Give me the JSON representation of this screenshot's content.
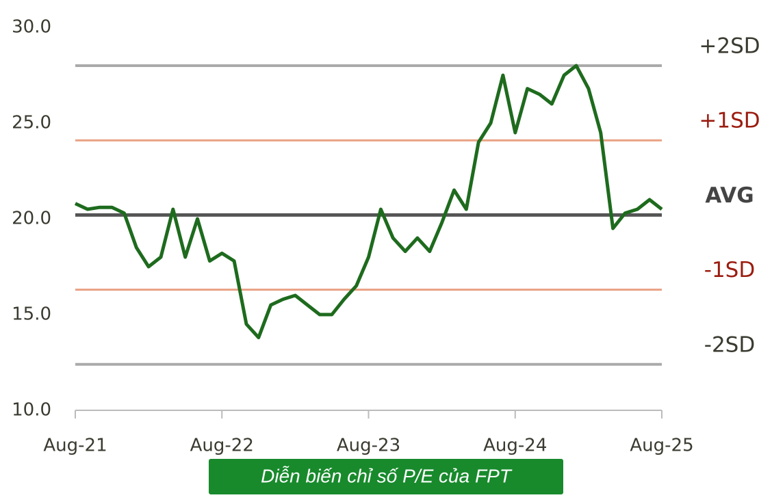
{
  "chart_data": {
    "type": "line",
    "title": "Diễn biến chỉ số P/E của FPT",
    "categories": [
      "Aug-21",
      null,
      null,
      null,
      null,
      null,
      null,
      null,
      null,
      null,
      null,
      null,
      "Aug-22",
      null,
      null,
      null,
      null,
      null,
      null,
      null,
      null,
      null,
      null,
      null,
      "Aug-23",
      null,
      null,
      null,
      null,
      null,
      null,
      null,
      null,
      null,
      null,
      null,
      "Aug-24",
      null,
      null,
      null,
      null,
      null,
      null,
      null,
      null,
      null,
      null,
      null,
      "Aug-25"
    ],
    "series": [
      {
        "name": "P/E",
        "color": "#1e6b1e",
        "values": [
          20.8,
          20.5,
          20.6,
          20.6,
          20.3,
          18.5,
          17.5,
          18.0,
          20.5,
          18.0,
          20.0,
          17.8,
          18.2,
          17.8,
          14.5,
          13.8,
          15.5,
          15.8,
          16.0,
          15.5,
          15.0,
          15.0,
          15.8,
          16.5,
          18.0,
          20.5,
          19.0,
          18.3,
          19.0,
          18.3,
          19.8,
          21.5,
          20.5,
          24.0,
          25.0,
          27.5,
          24.5,
          26.8,
          26.5,
          26.0,
          27.5,
          28.0,
          26.8,
          24.5,
          19.5,
          20.3,
          20.5,
          21.0,
          20.5
        ]
      }
    ],
    "reference_lines": [
      {
        "label": "+2SD",
        "value": 28.0,
        "color": "#aaaaaa",
        "label_color": "#3a3a30"
      },
      {
        "label": "+1SD",
        "value": 24.1,
        "color": "#e9a184",
        "label_color": "#9b1c10"
      },
      {
        "label": "AVG",
        "value": 20.2,
        "color": "#555555",
        "label_color": "#444444"
      },
      {
        "label": "-1SD",
        "value": 16.3,
        "color": "#e9a184",
        "label_color": "#9b1c10"
      },
      {
        "label": "-2SD",
        "value": 12.4,
        "color": "#aaaaaa",
        "label_color": "#3a3a30"
      }
    ],
    "ylim": [
      10,
      30
    ],
    "yticks": [
      {
        "value": 10,
        "label": "10.0"
      },
      {
        "value": 15,
        "label": "15.0"
      },
      {
        "value": 20,
        "label": "20.0"
      },
      {
        "value": 25,
        "label": "25.0"
      },
      {
        "value": 30,
        "label": "30.0"
      }
    ]
  }
}
